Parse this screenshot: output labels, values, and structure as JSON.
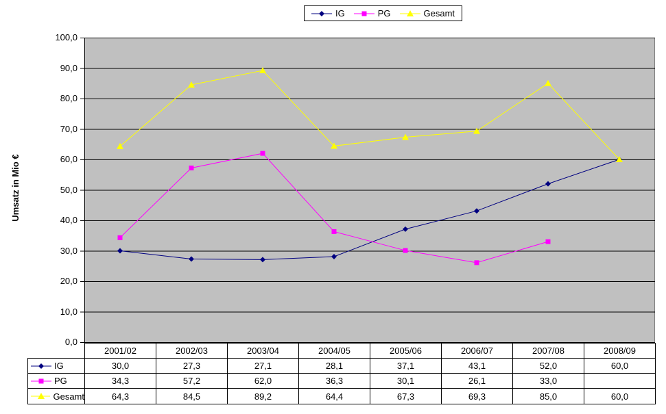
{
  "chart_data": {
    "type": "line",
    "title": "",
    "xlabel": "",
    "ylabel": "Umsatz in Mio €",
    "ylim": [
      0,
      100
    ],
    "ytick_step": 10,
    "grid": true,
    "legend_position": "top",
    "plot_background": "#C0C0C0",
    "plot_border_color": "#808080",
    "gridline_color": "#000000",
    "decimal_separator": ",",
    "categories": [
      "2001/02",
      "2002/03",
      "2003/04",
      "2004/05",
      "2005/06",
      "2006/07",
      "2007/08",
      "2008/09"
    ],
    "series": [
      {
        "name": "IG",
        "color": "#000080",
        "marker": "diamond",
        "values": [
          30.0,
          27.3,
          27.1,
          28.1,
          37.1,
          43.1,
          52.0,
          60.0
        ]
      },
      {
        "name": "PG",
        "color": "#FF00FF",
        "marker": "square",
        "values": [
          34.3,
          57.2,
          62.0,
          36.3,
          30.1,
          26.1,
          33.0,
          null
        ]
      },
      {
        "name": "Gesamt",
        "color": "#FFFF00",
        "marker": "triangle",
        "values": [
          64.3,
          84.5,
          89.2,
          64.4,
          67.3,
          69.3,
          85.0,
          60.0
        ]
      }
    ],
    "data_table_shown": true
  }
}
